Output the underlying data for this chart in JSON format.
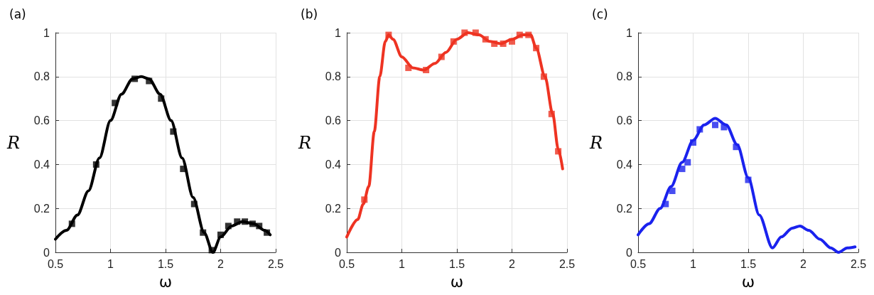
{
  "chart_data": [
    {
      "type": "line",
      "title": "(a)",
      "xlabel": "ω",
      "ylabel": "R",
      "xlim": [
        0.5,
        2.5
      ],
      "xticks": [
        0.5,
        1,
        1.5,
        2,
        2.5
      ],
      "ylim": [
        0,
        1
      ],
      "yticks": [
        0,
        0.2,
        0.4,
        0.6,
        0.8,
        1
      ],
      "grid": true,
      "line_style": "solid",
      "series": [
        {
          "type": "line",
          "marker": "none",
          "color": "#000000",
          "x": [
            0.5,
            0.6,
            0.7,
            0.8,
            0.9,
            1.0,
            1.1,
            1.2,
            1.28,
            1.35,
            1.45,
            1.55,
            1.65,
            1.75,
            1.85,
            1.93,
            2.0,
            2.1,
            2.2,
            2.3,
            2.4,
            2.45
          ],
          "values": [
            0.06,
            0.1,
            0.17,
            0.28,
            0.43,
            0.6,
            0.72,
            0.79,
            0.8,
            0.79,
            0.72,
            0.6,
            0.43,
            0.25,
            0.09,
            0.0,
            0.07,
            0.12,
            0.14,
            0.13,
            0.1,
            0.08
          ]
        },
        {
          "type": "scatter",
          "marker": "square",
          "color": "#000000",
          "x": [
            0.65,
            0.87,
            1.04,
            1.22,
            1.35,
            1.46,
            1.57,
            1.66,
            1.76,
            1.84,
            1.92,
            2.0,
            2.07,
            2.15,
            2.22,
            2.29,
            2.35,
            2.42
          ],
          "values": [
            0.13,
            0.4,
            0.68,
            0.79,
            0.78,
            0.7,
            0.55,
            0.38,
            0.22,
            0.09,
            0.01,
            0.08,
            0.12,
            0.14,
            0.14,
            0.13,
            0.12,
            0.09
          ]
        }
      ]
    },
    {
      "type": "line",
      "title": "(b)",
      "xlabel": "ω",
      "ylabel": "R",
      "xlim": [
        0.5,
        2.5
      ],
      "xticks": [
        0.5,
        1,
        1.5,
        2,
        2.5
      ],
      "ylim": [
        0,
        1
      ],
      "yticks": [
        0,
        0.2,
        0.4,
        0.6,
        0.8,
        1
      ],
      "grid": true,
      "line_style": "solid",
      "series": [
        {
          "type": "line",
          "marker": "none",
          "color": "#ee3322",
          "x": [
            0.5,
            0.6,
            0.65,
            0.7,
            0.75,
            0.8,
            0.85,
            0.88,
            0.92,
            1.0,
            1.1,
            1.2,
            1.3,
            1.4,
            1.5,
            1.6,
            1.7,
            1.8,
            1.9,
            2.0,
            2.1,
            2.17,
            2.22,
            2.3,
            2.37,
            2.42,
            2.46
          ],
          "values": [
            0.07,
            0.15,
            0.22,
            0.3,
            0.55,
            0.8,
            0.96,
            0.99,
            0.97,
            0.89,
            0.84,
            0.83,
            0.86,
            0.91,
            0.97,
            1.0,
            0.99,
            0.96,
            0.95,
            0.97,
            0.99,
            0.99,
            0.93,
            0.8,
            0.63,
            0.47,
            0.38
          ]
        },
        {
          "type": "scatter",
          "marker": "square",
          "color": "#ee3322",
          "x": [
            0.66,
            0.88,
            1.06,
            1.22,
            1.36,
            1.47,
            1.57,
            1.67,
            1.76,
            1.84,
            1.92,
            2.0,
            2.07,
            2.15,
            2.22,
            2.29,
            2.36,
            2.42
          ],
          "values": [
            0.24,
            0.99,
            0.84,
            0.83,
            0.89,
            0.96,
            1.0,
            1.0,
            0.97,
            0.95,
            0.95,
            0.96,
            0.99,
            0.99,
            0.93,
            0.8,
            0.63,
            0.46
          ]
        }
      ]
    },
    {
      "type": "line",
      "title": "(c)",
      "xlabel": "ω",
      "ylabel": "R",
      "xlim": [
        0.5,
        2.5
      ],
      "xticks": [
        0.5,
        1,
        1.5,
        2,
        2.5
      ],
      "ylim": [
        0,
        1
      ],
      "yticks": [
        0,
        0.2,
        0.4,
        0.6,
        0.8,
        1
      ],
      "grid": true,
      "line_style": "solid",
      "series": [
        {
          "type": "line",
          "marker": "none",
          "color": "#1a22ee",
          "x": [
            0.5,
            0.6,
            0.7,
            0.8,
            0.9,
            1.0,
            1.1,
            1.2,
            1.3,
            1.4,
            1.5,
            1.6,
            1.72,
            1.8,
            1.9,
            1.97,
            2.05,
            2.15,
            2.25,
            2.32,
            2.4,
            2.47
          ],
          "values": [
            0.08,
            0.13,
            0.2,
            0.3,
            0.41,
            0.51,
            0.58,
            0.61,
            0.58,
            0.49,
            0.34,
            0.17,
            0.02,
            0.07,
            0.11,
            0.12,
            0.1,
            0.06,
            0.02,
            0.0,
            0.02,
            0.025
          ]
        },
        {
          "type": "scatter",
          "marker": "square",
          "color": "#1a22ee",
          "x": [
            0.75,
            0.81,
            0.9,
            0.95,
            1.0,
            1.06,
            1.2,
            1.28,
            1.39,
            1.5
          ],
          "values": [
            0.22,
            0.28,
            0.38,
            0.41,
            0.5,
            0.56,
            0.58,
            0.57,
            0.48,
            0.33
          ]
        }
      ]
    }
  ]
}
